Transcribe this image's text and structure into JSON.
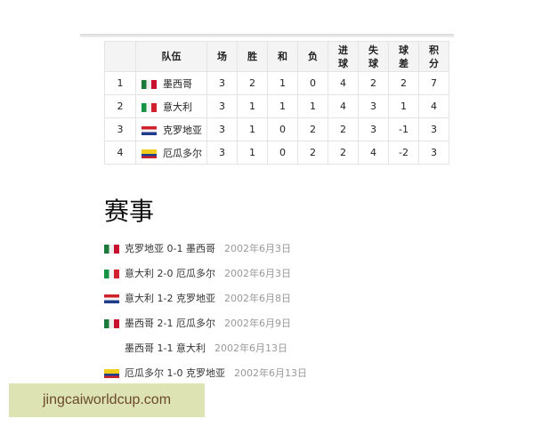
{
  "table": {
    "headers": [
      "",
      "队伍",
      "场",
      "胜",
      "和",
      "负",
      "进\n球",
      "失\n球",
      "球\n差",
      "积\n分"
    ],
    "rows": [
      {
        "rank": "1",
        "flag": "mx",
        "team": "墨西哥",
        "p": "3",
        "w": "2",
        "d": "1",
        "l": "0",
        "gf": "4",
        "ga": "2",
        "gd": "2",
        "pts": "7"
      },
      {
        "rank": "2",
        "flag": "it",
        "team": "意大利",
        "p": "3",
        "w": "1",
        "d": "1",
        "l": "1",
        "gf": "4",
        "ga": "3",
        "gd": "1",
        "pts": "4"
      },
      {
        "rank": "3",
        "flag": "hr",
        "team": "克罗地亚",
        "p": "3",
        "w": "1",
        "d": "0",
        "l": "2",
        "gf": "2",
        "ga": "3",
        "gd": "-1",
        "pts": "3"
      },
      {
        "rank": "4",
        "flag": "ec",
        "team": "厄瓜多尔",
        "p": "3",
        "w": "1",
        "d": "0",
        "l": "2",
        "gf": "2",
        "ga": "4",
        "gd": "-2",
        "pts": "3"
      }
    ]
  },
  "section_title": "赛事",
  "matches": [
    {
      "flag": "mx",
      "text": "克罗地亚 0-1 墨西哥",
      "date": "2002年6月3日"
    },
    {
      "flag": "it",
      "text": "意大利 2-0 厄瓜多尔",
      "date": "2002年6月3日"
    },
    {
      "flag": "hr",
      "text": "意大利 1-2 克罗地亚",
      "date": "2002年6月8日"
    },
    {
      "flag": "mx",
      "text": "墨西哥 2-1 厄瓜多尔",
      "date": "2002年6月9日"
    },
    {
      "flag": "",
      "text": "墨西哥 1-1 意大利",
      "date": "2002年6月13日"
    },
    {
      "flag": "ec",
      "text": "厄瓜多尔 1-0 克罗地亚",
      "date": "2002年6月13日"
    }
  ],
  "watermark": "jingcaiworldcup.com"
}
